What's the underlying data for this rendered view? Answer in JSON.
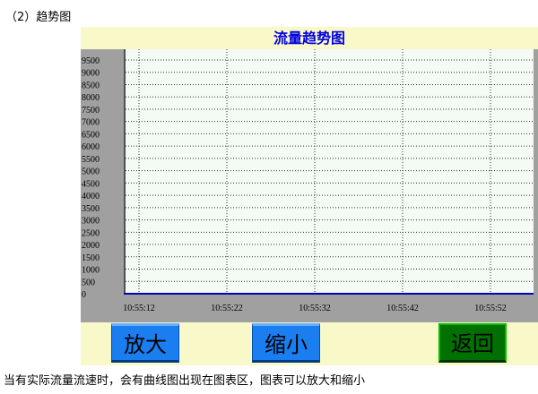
{
  "heading": "（2）趋势图",
  "panel": {
    "title": "流量趋势图"
  },
  "buttons": {
    "zoom_in": "放大",
    "zoom_out": "缩小",
    "back": "返回"
  },
  "caption": "当有实际流量流速时，会有曲线图出现在图表区，图表可以放大和缩小",
  "colors": {
    "title": "#0000e0",
    "zoom_buttons": "#1a7ef0",
    "back_button": "#007000",
    "panel_bg": "#f8f8c8",
    "axis_bg": "#a0a0a0"
  },
  "chart_data": {
    "type": "line",
    "title": "流量趋势图",
    "ylim": [
      0,
      9500
    ],
    "yticks": [
      "0",
      "500",
      "1000",
      "1500",
      "2000",
      "2500",
      "3000",
      "3500",
      "4000",
      "4500",
      "5000",
      "5500",
      "6000",
      "6500",
      "7000",
      "7500",
      "8000",
      "8500",
      "9000",
      "9500"
    ],
    "xticks": [
      "10:55:12",
      "10:55:22",
      "10:55:32",
      "10:55:42",
      "10:55:52"
    ],
    "grid": true,
    "series": []
  }
}
